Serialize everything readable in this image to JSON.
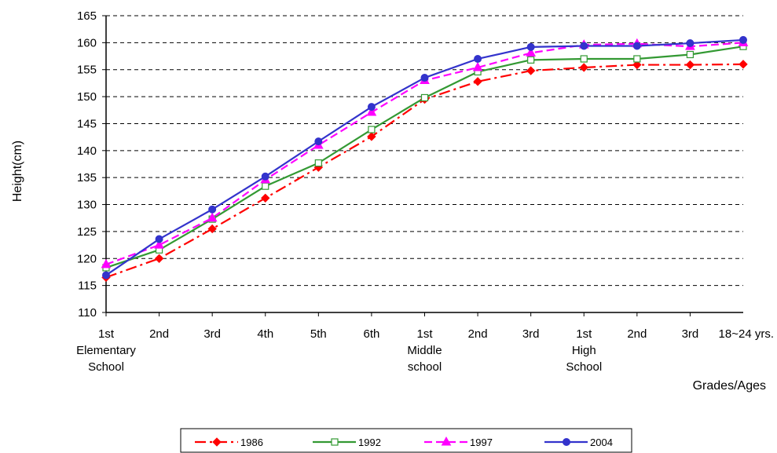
{
  "chart_data": {
    "type": "line",
    "title": "",
    "ylabel": "Height(cm)",
    "xlabel": "Grades/Ages",
    "ylim": [
      110,
      165
    ],
    "yticks": [
      "110",
      "115",
      "120",
      "125",
      "130",
      "135",
      "140",
      "145",
      "150",
      "155",
      "160",
      "165"
    ],
    "categories": [
      [
        "1st",
        "Elementary",
        "School"
      ],
      [
        "2nd"
      ],
      [
        "3rd"
      ],
      [
        "4th"
      ],
      [
        "5th"
      ],
      [
        "6th"
      ],
      [
        "1st",
        "Middle",
        "school"
      ],
      [
        "2nd"
      ],
      [
        "3rd"
      ],
      [
        "1st",
        "High",
        "School"
      ],
      [
        "2nd"
      ],
      [
        "3rd"
      ],
      [
        "18~24 yrs."
      ]
    ],
    "grid": "horizontal dashed",
    "legend_position": "bottom",
    "series": [
      {
        "name": "1986",
        "color": "#ff0000",
        "marker": "diamond",
        "dash": "dash-dot",
        "values": [
          116.5,
          120.0,
          125.5,
          131.2,
          136.9,
          142.6,
          149.5,
          152.8,
          154.8,
          155.4,
          155.9,
          155.9,
          156.0
        ]
      },
      {
        "name": "1992",
        "color": "#339933",
        "marker": "square-open",
        "dash": "solid",
        "values": [
          118.3,
          121.6,
          127.3,
          133.4,
          137.7,
          143.9,
          149.8,
          154.6,
          156.8,
          157.0,
          157.0,
          157.8,
          159.3
        ]
      },
      {
        "name": "1997",
        "color": "#ff00ff",
        "marker": "triangle",
        "dash": "dashed",
        "values": [
          118.9,
          122.5,
          127.5,
          134.6,
          141.0,
          147.1,
          153.0,
          155.4,
          158.1,
          159.6,
          159.8,
          159.3,
          160.0
        ]
      },
      {
        "name": "2004",
        "color": "#3333cc",
        "marker": "circle",
        "dash": "solid",
        "values": [
          116.9,
          123.6,
          129.1,
          135.2,
          141.7,
          148.1,
          153.5,
          157.0,
          159.2,
          159.4,
          159.4,
          159.9,
          160.5
        ]
      }
    ]
  }
}
